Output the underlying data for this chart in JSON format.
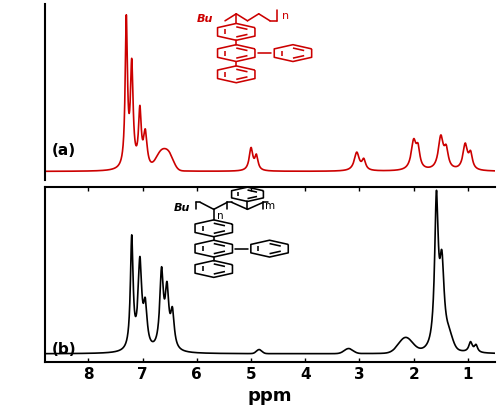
{
  "xlim": [
    0.5,
    8.8
  ],
  "ylim_a": [
    -0.08,
    1.65
  ],
  "ylim_b": [
    -0.08,
    1.65
  ],
  "xticks": [
    1,
    2,
    3,
    4,
    5,
    6,
    7,
    8
  ],
  "xlabel": "ppm",
  "xlabel_fontsize": 13,
  "xlabel_fontweight": "bold",
  "tick_fontsize": 11,
  "tick_fontweight": "bold",
  "label_a": "(a)",
  "label_b": "(b)",
  "label_fontsize": 11,
  "label_fontweight": "bold",
  "color_a": "#cc0000",
  "color_b": "#000000",
  "linewidth": 1.2,
  "background": "#ffffff",
  "border_lw": 1.5
}
